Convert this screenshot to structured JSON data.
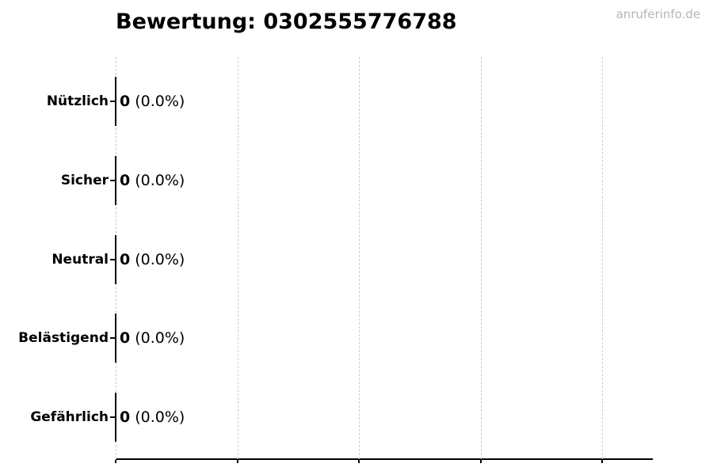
{
  "header": {
    "title": "Bewertung: 0302555776788",
    "watermark": "anruferinfo.de"
  },
  "chart_data": {
    "type": "bar",
    "orientation": "horizontal",
    "title": "Bewertung: 0302555776788",
    "categories": [
      "Nützlich",
      "Sicher",
      "Neutral",
      "Belästigend",
      "Gefährlich"
    ],
    "values": [
      0,
      0,
      0,
      0,
      0
    ],
    "percent_labels": [
      "(0.0%)",
      "(0.0%)",
      "(0.0%)",
      "(0.0%)",
      "(0.0%)"
    ],
    "bar_value_format": "count (percent)",
    "xlabel": "",
    "ylabel": "",
    "x_axis_tick_labels": [],
    "gridline_count": 5,
    "grid": "vertical-dashed",
    "legend": "none"
  },
  "colors": {
    "text": "#000000",
    "bar_edge": "#000000",
    "axis": "#000000",
    "gridline": "#cccccc",
    "watermark": "#b5b5b5",
    "background": "#ffffff"
  }
}
